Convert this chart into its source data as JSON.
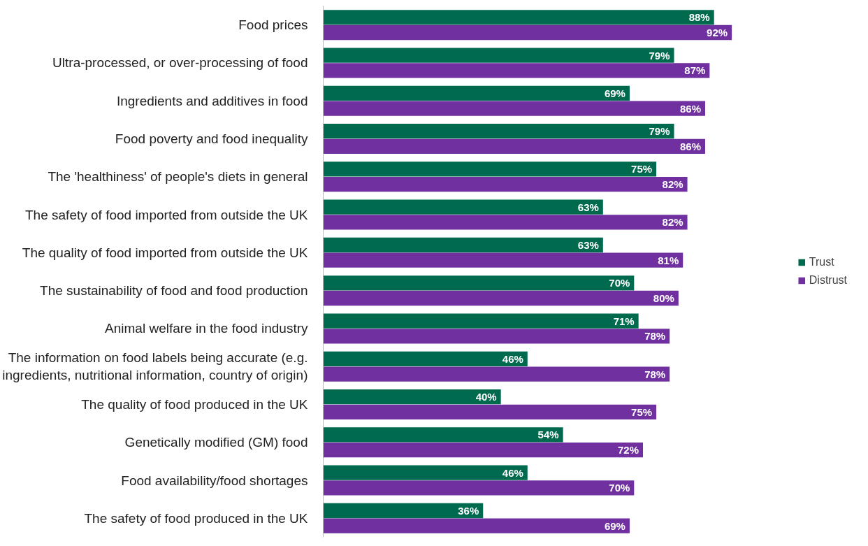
{
  "chart_data": {
    "type": "bar",
    "orientation": "horizontal",
    "legend": "right",
    "categories": [
      "Food prices",
      "Ultra-processed, or over-processing of food",
      "Ingredients and additives in food",
      "Food poverty and food inequality",
      "The 'healthiness' of people's diets in general",
      "The safety of food imported from outside the UK",
      "The quality of food imported from outside the UK",
      "The sustainability of food and food production",
      "Animal welfare in the food industry",
      "The information on food labels being accurate (e.g.\ningredients, nutritional information, country of origin)",
      "The quality of food produced in the UK",
      "Genetically modified (GM) food",
      "Food availability/food shortages",
      "The safety of food produced in the UK"
    ],
    "series": [
      {
        "name": "Trust",
        "color": "#006a4e",
        "values": [
          88,
          79,
          69,
          79,
          75,
          63,
          63,
          70,
          71,
          46,
          40,
          54,
          46,
          36
        ],
        "value_labels": [
          "88%",
          "79%",
          "69%",
          "79%",
          "75%",
          "63%",
          "63%",
          "70%",
          "71%",
          "46%",
          "40%",
          "54%",
          "46%",
          "36%"
        ]
      },
      {
        "name": "Distrust",
        "color": "#7030a0",
        "values": [
          92,
          87,
          86,
          86,
          82,
          82,
          81,
          80,
          78,
          78,
          75,
          72,
          70,
          69
        ],
        "value_labels": [
          "92%",
          "87%",
          "86%",
          "86%",
          "82%",
          "82%",
          "81%",
          "80%",
          "78%",
          "78%",
          "75%",
          "72%",
          "70%",
          "69%"
        ]
      }
    ]
  }
}
